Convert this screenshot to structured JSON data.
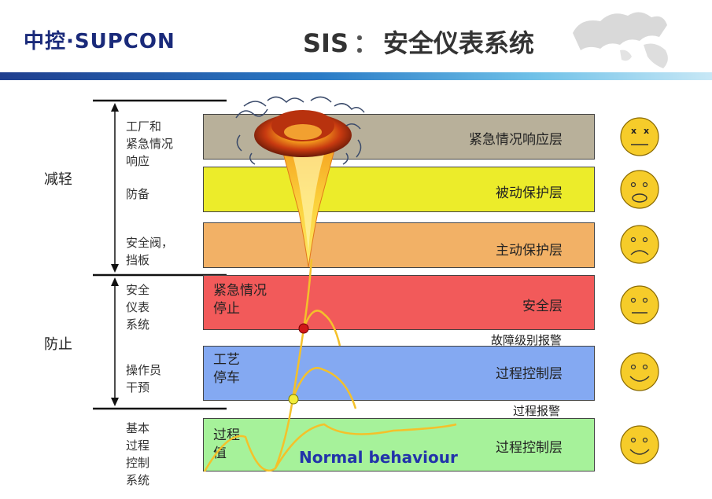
{
  "header": {
    "logo_text": "中控·SUPCON",
    "title_prefix": "SIS",
    "title_sep": "：",
    "title_main": "安全仪表系统",
    "accent_color": "#1f3e8e"
  },
  "groups": {
    "mitigate": "减轻",
    "prevent": "防止"
  },
  "side_labels": [
    {
      "text": "工厂和\n紧急情况\n响应"
    },
    {
      "text": "防备"
    },
    {
      "text": "安全阀，\n挡板"
    },
    {
      "text": "安全\n仪表\n系统"
    },
    {
      "text": "操作员\n干预"
    },
    {
      "text": "基本\n过程\n控制\n系统"
    }
  ],
  "bands": [
    {
      "label": "紧急情况响应层",
      "left_text": "",
      "color": "#b8b09a"
    },
    {
      "label": "被动保护层",
      "left_text": "",
      "color": "#ecec2a"
    },
    {
      "label": "主动保护层",
      "left_text": "",
      "color": "#f2b166"
    },
    {
      "label": "安全层",
      "left_text": "紧急情况\n停止",
      "color": "#f25a5a"
    },
    {
      "label": "过程控制层",
      "left_text": "工艺\n停车",
      "color": "#84a9f2"
    },
    {
      "label": "过程控制层",
      "left_text": "过程\n值",
      "color": "#a6f29a"
    }
  ],
  "alarms": {
    "fault_alarm": "故障级别报警",
    "process_alarm": "过程报警"
  },
  "normal_label": "Normal behaviour",
  "faces": [
    {
      "mood": "dead-face-icon"
    },
    {
      "mood": "shocked-face-icon"
    },
    {
      "mood": "sad-face-icon"
    },
    {
      "mood": "neutral-face-icon"
    },
    {
      "mood": "smile-face-icon"
    },
    {
      "mood": "smile-face-icon"
    }
  ]
}
